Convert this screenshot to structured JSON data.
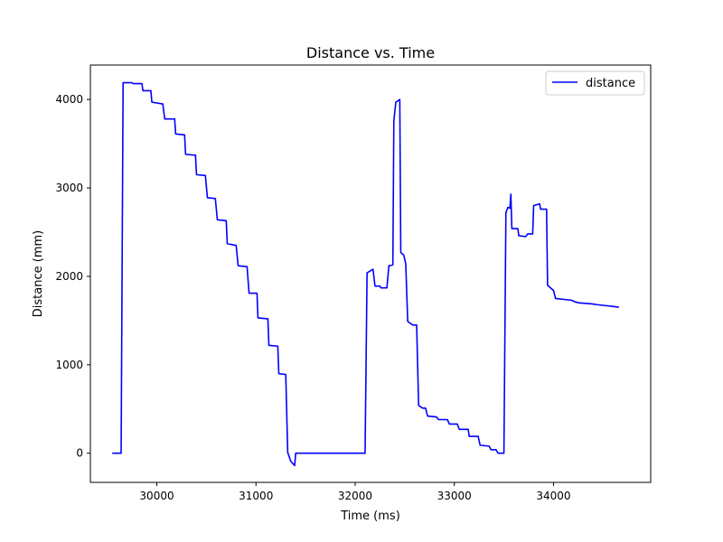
{
  "chart_data": {
    "type": "line",
    "title": "Distance vs. Time",
    "xlabel": "Time (ms)",
    "ylabel": "Distance (mm)",
    "xlim": [
      29330,
      34980
    ],
    "ylim": [
      -330,
      4390
    ],
    "xticks": [
      30000,
      31000,
      32000,
      33000,
      34000
    ],
    "yticks": [
      0,
      1000,
      2000,
      3000,
      4000
    ],
    "grid": false,
    "legend": {
      "location": "upper right"
    },
    "series": [
      {
        "name": "distance",
        "color": "#0000ff",
        "points": [
          [
            29550,
            0
          ],
          [
            29640,
            0
          ],
          [
            29660,
            4190
          ],
          [
            29750,
            4190
          ],
          [
            29760,
            4180
          ],
          [
            29850,
            4180
          ],
          [
            29860,
            4100
          ],
          [
            29940,
            4100
          ],
          [
            29950,
            3970
          ],
          [
            30060,
            3950
          ],
          [
            30080,
            3780
          ],
          [
            30180,
            3780
          ],
          [
            30190,
            3610
          ],
          [
            30280,
            3600
          ],
          [
            30290,
            3380
          ],
          [
            30390,
            3370
          ],
          [
            30400,
            3150
          ],
          [
            30490,
            3140
          ],
          [
            30510,
            2890
          ],
          [
            30590,
            2880
          ],
          [
            30610,
            2640
          ],
          [
            30700,
            2630
          ],
          [
            30710,
            2370
          ],
          [
            30800,
            2350
          ],
          [
            30820,
            2120
          ],
          [
            30910,
            2110
          ],
          [
            30930,
            1810
          ],
          [
            31010,
            1810
          ],
          [
            31020,
            1530
          ],
          [
            31120,
            1520
          ],
          [
            31130,
            1220
          ],
          [
            31220,
            1210
          ],
          [
            31230,
            900
          ],
          [
            31300,
            890
          ],
          [
            31320,
            10
          ],
          [
            31350,
            -90
          ],
          [
            31390,
            -140
          ],
          [
            31400,
            0
          ],
          [
            32100,
            0
          ],
          [
            32120,
            2040
          ],
          [
            32180,
            2080
          ],
          [
            32200,
            1890
          ],
          [
            32250,
            1890
          ],
          [
            32260,
            1870
          ],
          [
            32320,
            1870
          ],
          [
            32340,
            2120
          ],
          [
            32380,
            2130
          ],
          [
            32390,
            3760
          ],
          [
            32410,
            3970
          ],
          [
            32450,
            4000
          ],
          [
            32460,
            2270
          ],
          [
            32490,
            2240
          ],
          [
            32510,
            2140
          ],
          [
            32530,
            1490
          ],
          [
            32580,
            1450
          ],
          [
            32620,
            1450
          ],
          [
            32640,
            540
          ],
          [
            32680,
            510
          ],
          [
            32710,
            510
          ],
          [
            32730,
            420
          ],
          [
            32820,
            410
          ],
          [
            32840,
            380
          ],
          [
            32930,
            380
          ],
          [
            32950,
            330
          ],
          [
            33030,
            330
          ],
          [
            33050,
            270
          ],
          [
            33140,
            270
          ],
          [
            33150,
            190
          ],
          [
            33240,
            190
          ],
          [
            33260,
            90
          ],
          [
            33350,
            80
          ],
          [
            33370,
            40
          ],
          [
            33420,
            40
          ],
          [
            33440,
            0
          ],
          [
            33500,
            0
          ],
          [
            33520,
            2720
          ],
          [
            33540,
            2780
          ],
          [
            33560,
            2770
          ],
          [
            33570,
            2930
          ],
          [
            33580,
            2540
          ],
          [
            33640,
            2540
          ],
          [
            33650,
            2460
          ],
          [
            33720,
            2450
          ],
          [
            33740,
            2480
          ],
          [
            33790,
            2480
          ],
          [
            33800,
            2800
          ],
          [
            33860,
            2820
          ],
          [
            33870,
            2760
          ],
          [
            33930,
            2760
          ],
          [
            33940,
            1900
          ],
          [
            34000,
            1840
          ],
          [
            34020,
            1750
          ],
          [
            34100,
            1740
          ],
          [
            34180,
            1730
          ],
          [
            34220,
            1710
          ],
          [
            34260,
            1700
          ],
          [
            34380,
            1690
          ],
          [
            34440,
            1680
          ],
          [
            34520,
            1670
          ],
          [
            34600,
            1660
          ],
          [
            34660,
            1650
          ]
        ]
      }
    ]
  }
}
